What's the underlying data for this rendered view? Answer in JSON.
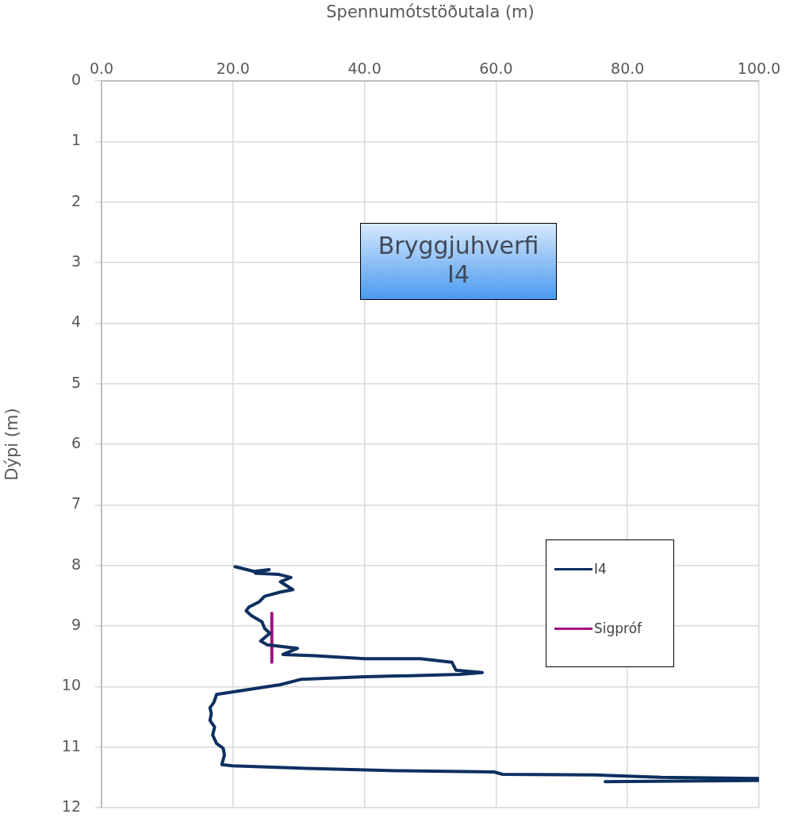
{
  "chart_data": {
    "type": "line",
    "title": "Bryggjuhverfi\nI4",
    "xlabel": "Spennumótstöðutala (m)",
    "ylabel": "Dýpi (m)",
    "xlim": [
      0,
      100
    ],
    "xticks": [
      {
        "value": 0,
        "label": "0.0"
      },
      {
        "value": 20,
        "label": "20.0"
      },
      {
        "value": 40,
        "label": "40.0"
      },
      {
        "value": 60,
        "label": "60.0"
      },
      {
        "value": 80,
        "label": "80.0"
      },
      {
        "value": 100,
        "label": "100.0"
      }
    ],
    "ylim": [
      12,
      0
    ],
    "yticks": [
      0,
      1,
      2,
      3,
      4,
      5,
      6,
      7,
      8,
      9,
      10,
      11,
      12
    ],
    "grid": true,
    "legend": "right",
    "marker": "none",
    "line_style": "solid",
    "series": [
      {
        "name": "I4",
        "color": "#0d3060",
        "x": [
          20.3,
          23.2,
          25.5,
          23.4,
          27.0,
          28.8,
          27.2,
          29.1,
          27.2,
          24.8,
          24.0,
          22.4,
          22.0,
          22.8,
          24.4,
          24.8,
          25.6,
          24.2,
          25.2,
          29.8,
          27.6,
          32.4,
          40.0,
          48.5,
          53.3,
          53.9,
          57.9,
          54.5,
          40.0,
          30.4,
          27.2,
          17.5,
          17.1,
          16.5,
          16.7,
          16.5,
          17.2,
          16.9,
          17.5,
          18.5,
          18.7,
          18.3,
          19.9,
          31.2,
          44.9,
          59.7,
          61.0,
          75.0,
          85.1,
          100,
          100,
          76.6
        ],
        "values": [
          8.02,
          8.1,
          8.07,
          8.13,
          8.15,
          8.2,
          8.27,
          8.4,
          8.44,
          8.51,
          8.6,
          8.69,
          8.75,
          8.83,
          8.93,
          9.04,
          9.12,
          9.25,
          9.31,
          9.37,
          9.47,
          9.49,
          9.54,
          9.54,
          9.6,
          9.73,
          9.77,
          9.8,
          9.84,
          9.88,
          9.97,
          10.13,
          10.26,
          10.35,
          10.45,
          10.56,
          10.67,
          10.8,
          10.94,
          11.02,
          11.13,
          11.29,
          11.31,
          11.35,
          11.39,
          11.41,
          11.45,
          11.46,
          11.5,
          11.52,
          11.55,
          11.57
        ]
      },
      {
        "name": "Sigpróf",
        "color": "#a0127f",
        "x": [
          25.9,
          25.9
        ],
        "values": [
          8.79,
          9.6
        ]
      }
    ]
  }
}
